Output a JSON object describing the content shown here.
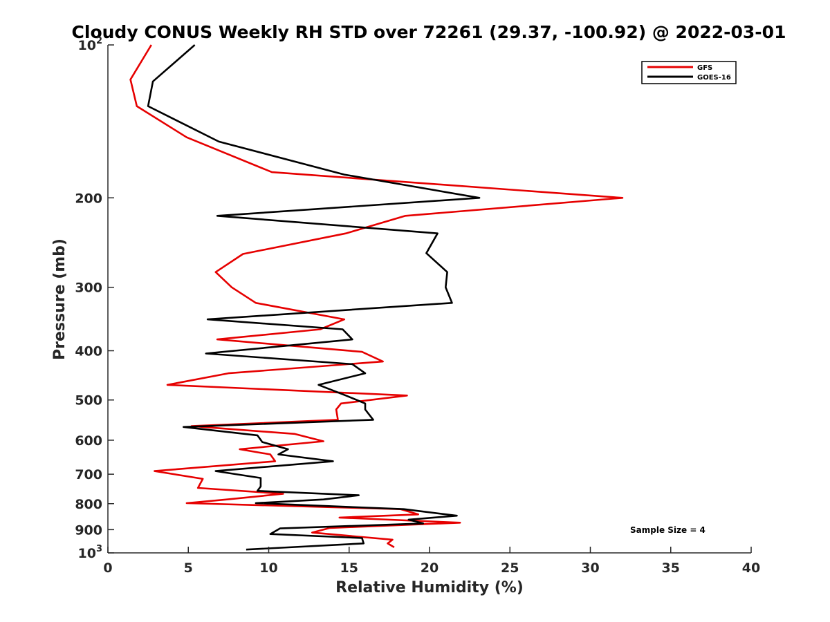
{
  "chart_data": {
    "type": "line",
    "title": "Cloudy CONUS Weekly RH STD over 72261 (29.37, -100.92) @ 2022-03-01",
    "xlabel": "Relative Humidity (%)",
    "ylabel": "Pressure (mb)",
    "xlim": [
      0,
      40
    ],
    "ylim": [
      100,
      1000
    ],
    "y_scale": "log",
    "y_reversed": true,
    "x_ticks": [
      {
        "value": 0,
        "label": "0"
      },
      {
        "value": 5,
        "label": "5"
      },
      {
        "value": 10,
        "label": "10"
      },
      {
        "value": 15,
        "label": "15"
      },
      {
        "value": 20,
        "label": "20"
      },
      {
        "value": 25,
        "label": "25"
      },
      {
        "value": 30,
        "label": "30"
      },
      {
        "value": 35,
        "label": "35"
      },
      {
        "value": 40,
        "label": "40"
      }
    ],
    "y_ticks": [
      {
        "value": 100,
        "base": "10",
        "exp": "2"
      },
      {
        "value": 200,
        "base": "200",
        "exp": ""
      },
      {
        "value": 300,
        "base": "300",
        "exp": ""
      },
      {
        "value": 400,
        "base": "400",
        "exp": ""
      },
      {
        "value": 500,
        "base": "500",
        "exp": ""
      },
      {
        "value": 600,
        "base": "600",
        "exp": ""
      },
      {
        "value": 700,
        "base": "700",
        "exp": ""
      },
      {
        "value": 800,
        "base": "800",
        "exp": ""
      },
      {
        "value": 900,
        "base": "900",
        "exp": ""
      },
      {
        "value": 1000,
        "base": "10",
        "exp": "3"
      }
    ],
    "grid": false,
    "legend_position": "top-right",
    "annotation": "Sample Size = 4",
    "series": [
      {
        "name": "GFS",
        "color": "#e60000",
        "points": [
          [
            2.7,
            100
          ],
          [
            1.4,
            117
          ],
          [
            1.8,
            132
          ],
          [
            4.9,
            152
          ],
          [
            10.2,
            178
          ],
          [
            32.0,
            200
          ],
          [
            18.5,
            217
          ],
          [
            14.8,
            235
          ],
          [
            8.4,
            258
          ],
          [
            6.7,
            280
          ],
          [
            7.7,
            300
          ],
          [
            9.2,
            322
          ],
          [
            14.7,
            347
          ],
          [
            13.2,
            363
          ],
          [
            6.8,
            380
          ],
          [
            15.8,
            402
          ],
          [
            17.1,
            420
          ],
          [
            7.5,
            443
          ],
          [
            3.7,
            467
          ],
          [
            18.6,
            490
          ],
          [
            14.5,
            508
          ],
          [
            14.2,
            522
          ],
          [
            14.3,
            547
          ],
          [
            5.2,
            563
          ],
          [
            11.6,
            583
          ],
          [
            13.4,
            603
          ],
          [
            8.2,
            625
          ],
          [
            10.1,
            640
          ],
          [
            10.4,
            660
          ],
          [
            2.9,
            690
          ],
          [
            5.9,
            715
          ],
          [
            5.6,
            745
          ],
          [
            10.9,
            765
          ],
          [
            7.4,
            785
          ],
          [
            4.9,
            798
          ],
          [
            18.2,
            820
          ],
          [
            19.3,
            840
          ],
          [
            14.4,
            852
          ],
          [
            21.9,
            872
          ],
          [
            13.8,
            893
          ],
          [
            12.7,
            912
          ],
          [
            17.7,
            942
          ],
          [
            17.4,
            958
          ],
          [
            17.8,
            975
          ]
        ]
      },
      {
        "name": "GOES-16",
        "color": "#000000",
        "points": [
          [
            5.4,
            100
          ],
          [
            2.8,
            118
          ],
          [
            2.5,
            132
          ],
          [
            6.9,
            155
          ],
          [
            14.7,
            180
          ],
          [
            23.1,
            200
          ],
          [
            6.8,
            217
          ],
          [
            20.5,
            235
          ],
          [
            19.8,
            257
          ],
          [
            21.1,
            280
          ],
          [
            21.0,
            300
          ],
          [
            21.4,
            322
          ],
          [
            6.2,
            347
          ],
          [
            14.6,
            363
          ],
          [
            15.2,
            380
          ],
          [
            6.1,
            405
          ],
          [
            15.2,
            425
          ],
          [
            16.0,
            443
          ],
          [
            13.1,
            467
          ],
          [
            14.8,
            490
          ],
          [
            16.0,
            508
          ],
          [
            16.0,
            522
          ],
          [
            16.5,
            547
          ],
          [
            4.7,
            565
          ],
          [
            9.3,
            587
          ],
          [
            9.6,
            605
          ],
          [
            11.2,
            625
          ],
          [
            10.6,
            640
          ],
          [
            14.0,
            660
          ],
          [
            6.7,
            690
          ],
          [
            9.5,
            712
          ],
          [
            9.5,
            740
          ],
          [
            9.3,
            755
          ],
          [
            15.6,
            770
          ],
          [
            13.4,
            785
          ],
          [
            9.2,
            798
          ],
          [
            18.4,
            820
          ],
          [
            21.7,
            845
          ],
          [
            18.7,
            860
          ],
          [
            19.6,
            875
          ],
          [
            10.7,
            895
          ],
          [
            10.1,
            918
          ],
          [
            15.8,
            935
          ],
          [
            15.9,
            958
          ],
          [
            8.6,
            985
          ]
        ]
      }
    ]
  }
}
